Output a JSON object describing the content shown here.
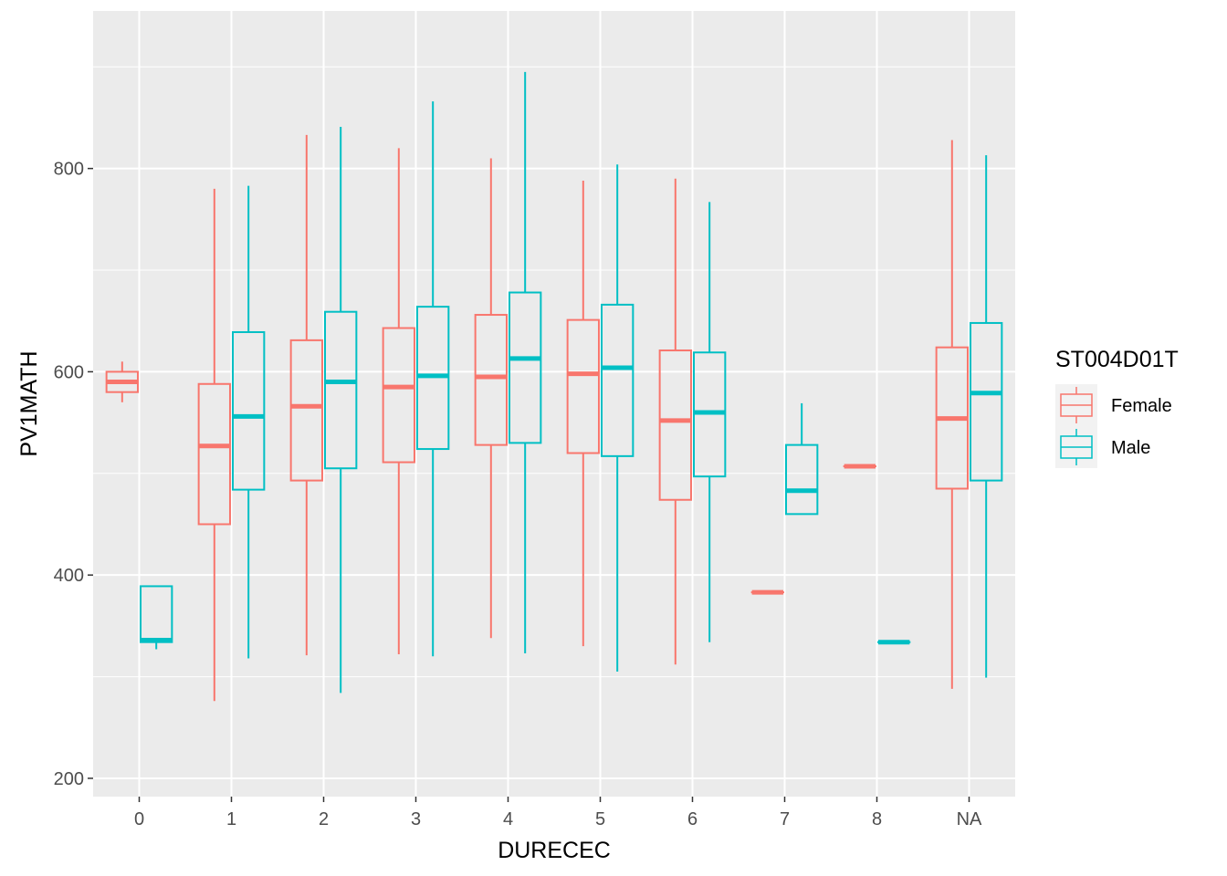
{
  "chart_data": {
    "type": "boxplot",
    "title": "",
    "xlabel": "DURECEC",
    "ylabel": "PV1MATH",
    "categories": [
      "0",
      "1",
      "2",
      "3",
      "4",
      "5",
      "6",
      "7",
      "8",
      "NA"
    ],
    "ylim": [
      182,
      955
    ],
    "yticks": [
      200,
      400,
      600,
      800
    ],
    "grid": true,
    "legend": {
      "title": "ST004D01T",
      "position": "right"
    },
    "series": [
      {
        "name": "Female",
        "color": "#F8766D",
        "boxes": [
          {
            "category": "0",
            "min": 570,
            "q1": 580,
            "median": 590,
            "q3": 600,
            "max": 610
          },
          {
            "category": "1",
            "min": 276,
            "q1": 450,
            "median": 527,
            "q3": 588,
            "max": 780
          },
          {
            "category": "2",
            "min": 321,
            "q1": 493,
            "median": 566,
            "q3": 631,
            "max": 833
          },
          {
            "category": "3",
            "min": 322,
            "q1": 511,
            "median": 585,
            "q3": 643,
            "max": 820
          },
          {
            "category": "4",
            "min": 338,
            "q1": 528,
            "median": 595,
            "q3": 656,
            "max": 810
          },
          {
            "category": "5",
            "min": 330,
            "q1": 520,
            "median": 598,
            "q3": 651,
            "max": 788
          },
          {
            "category": "6",
            "min": 312,
            "q1": 474,
            "median": 552,
            "q3": 621,
            "max": 790
          },
          {
            "category": "7",
            "min": 383,
            "q1": 383,
            "median": 383,
            "q3": 383,
            "max": 383
          },
          {
            "category": "8",
            "min": 507,
            "q1": 507,
            "median": 507,
            "q3": 507,
            "max": 507
          },
          {
            "category": "NA",
            "min": 288,
            "q1": 485,
            "median": 554,
            "q3": 624,
            "max": 828
          }
        ]
      },
      {
        "name": "Male",
        "color": "#00BFC4",
        "boxes": [
          {
            "category": "0",
            "min": 327,
            "q1": 334,
            "median": 336,
            "q3": 389,
            "max": 389
          },
          {
            "category": "1",
            "min": 318,
            "q1": 484,
            "median": 556,
            "q3": 639,
            "max": 783
          },
          {
            "category": "2",
            "min": 284,
            "q1": 505,
            "median": 590,
            "q3": 659,
            "max": 841
          },
          {
            "category": "3",
            "min": 320,
            "q1": 524,
            "median": 596,
            "q3": 664,
            "max": 866
          },
          {
            "category": "4",
            "min": 323,
            "q1": 530,
            "median": 613,
            "q3": 678,
            "max": 895
          },
          {
            "category": "5",
            "min": 305,
            "q1": 517,
            "median": 604,
            "q3": 666,
            "max": 804
          },
          {
            "category": "6",
            "min": 334,
            "q1": 497,
            "median": 560,
            "q3": 619,
            "max": 767
          },
          {
            "category": "7",
            "min": 460,
            "q1": 460,
            "median": 483,
            "q3": 528,
            "max": 569
          },
          {
            "category": "8",
            "min": 334,
            "q1": 334,
            "median": 334,
            "q3": 334,
            "max": 334
          },
          {
            "category": "NA",
            "min": 299,
            "q1": 493,
            "median": 579,
            "q3": 648,
            "max": 813
          }
        ]
      }
    ]
  }
}
